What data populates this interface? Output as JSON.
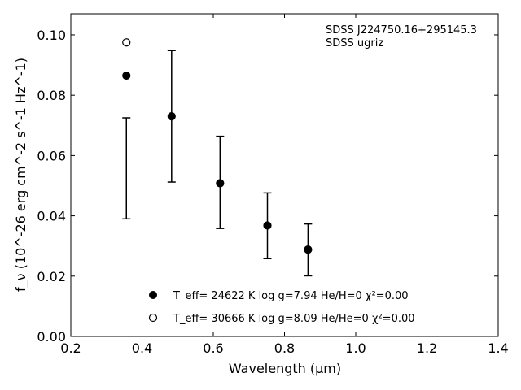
{
  "chart_data": {
    "type": "scatter",
    "title": "",
    "xlabel": "Wavelength (μm)",
    "ylabel": "f_ν (10^-26 erg cm^-2 s^-1 Hz^-1)",
    "xlim": [
      0.2,
      1.4
    ],
    "ylim": [
      0.0,
      0.107
    ],
    "x_ticks": [
      "0.2",
      "0.4",
      "0.6",
      "0.8",
      "1.0",
      "1.2",
      "1.4"
    ],
    "y_ticks": [
      "0.00",
      "0.02",
      "0.04",
      "0.06",
      "0.08",
      "0.10"
    ],
    "grid": false,
    "legend_position": "bottom-center",
    "annotation_lines": [
      "SDSS J224750.16+295145.3",
      "SDSS ugriz"
    ],
    "observed_errorbars": [
      {
        "x": 0.356,
        "low": 0.039,
        "high": 0.0725
      },
      {
        "x": 0.483,
        "low": 0.0512,
        "high": 0.0948
      },
      {
        "x": 0.619,
        "low": 0.0358,
        "high": 0.0664
      },
      {
        "x": 0.752,
        "low": 0.0258,
        "high": 0.0476
      },
      {
        "x": 0.866,
        "low": 0.0201,
        "high": 0.0373
      }
    ],
    "series": [
      {
        "name": "T_eff= 24622 K  log g=7.94  He/H=0  χ²=0.00",
        "marker": "filled-circle",
        "points": [
          {
            "x": 0.356,
            "y": 0.0865
          },
          {
            "x": 0.483,
            "y": 0.073
          },
          {
            "x": 0.619,
            "y": 0.0508
          },
          {
            "x": 0.752,
            "y": 0.0368
          },
          {
            "x": 0.866,
            "y": 0.0288
          }
        ]
      },
      {
        "name": "T_eff= 30666 K  log g=8.09  He/He=0  χ²=0.00",
        "marker": "open-circle",
        "points": [
          {
            "x": 0.356,
            "y": 0.0975
          }
        ]
      }
    ]
  }
}
